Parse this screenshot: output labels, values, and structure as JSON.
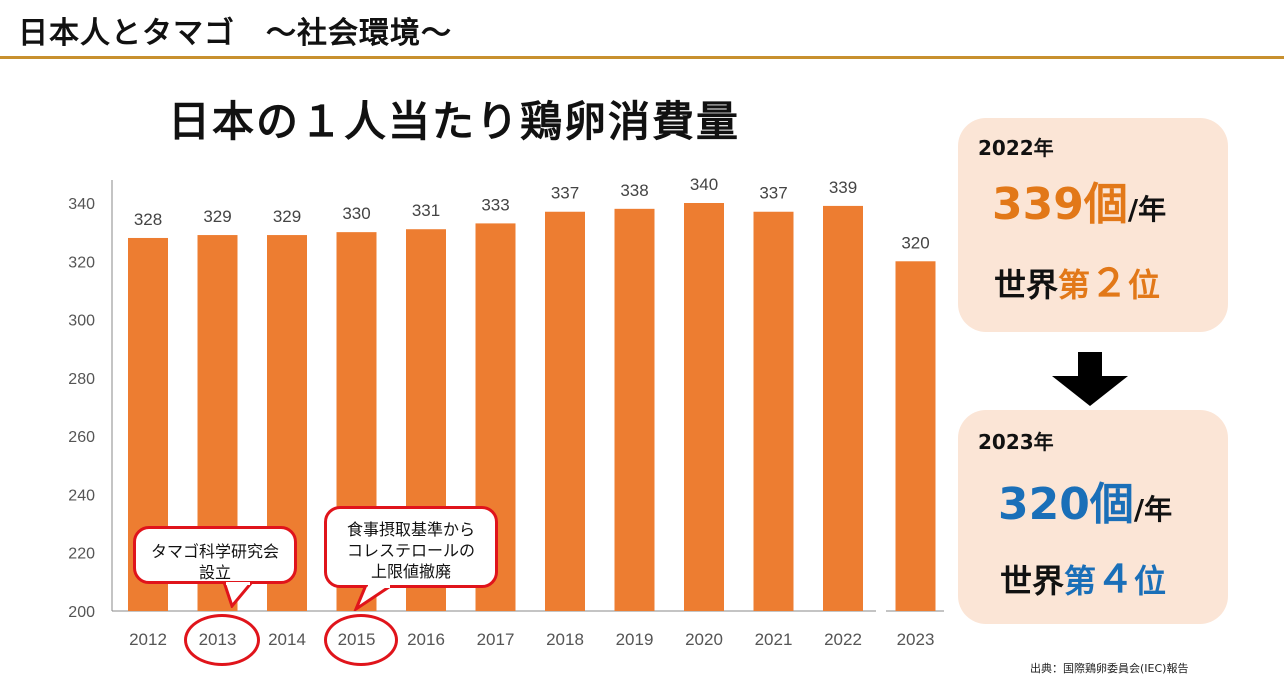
{
  "header": {
    "title": "日本人とタマゴ　～社会環境～"
  },
  "chart_data": {
    "type": "bar",
    "title": "日本の１人当たり鶏卵消費量",
    "categories": [
      "2012",
      "2013",
      "2014",
      "2015",
      "2016",
      "2017",
      "2018",
      "2019",
      "2020",
      "2021",
      "2022",
      "2023"
    ],
    "values": [
      328,
      329,
      329,
      330,
      331,
      333,
      337,
      338,
      340,
      337,
      339,
      320
    ],
    "ylim": [
      200,
      350
    ],
    "yticks": [
      200,
      220,
      240,
      260,
      280,
      300,
      320,
      340
    ],
    "xlabel": "",
    "ylabel": "",
    "bar_color": "#ed7d31",
    "grid": false
  },
  "info_2022": {
    "year": "2022年",
    "count": "339個",
    "unit": "/年",
    "rank_prefix": "世界",
    "rank_mid": "第",
    "rank_num": "２",
    "rank_suffix": "位",
    "accent": "#e27818"
  },
  "info_2023": {
    "year": "2023年",
    "count": "320個",
    "unit": "/年",
    "rank_prefix": "世界",
    "rank_mid": "第",
    "rank_num": "４",
    "rank_suffix": "位",
    "accent": "#1a6fb8"
  },
  "callouts": {
    "c2013": {
      "line1": "タマゴ科学研究会",
      "line2": "設立",
      "year": "2013"
    },
    "c2015": {
      "line1": "食事摂取基準から",
      "line2": "コレステロールの",
      "line3": "上限値撤廃",
      "year": "2015"
    }
  },
  "source": "出典：国際鶏卵委員会(IEC)報告"
}
